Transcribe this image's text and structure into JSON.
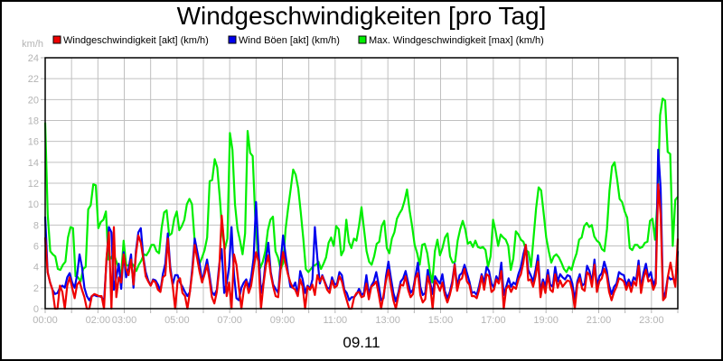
{
  "chart_data": {
    "type": "line",
    "title": "Windgeschwindigkeiten [pro Tag]",
    "xlabel": "09.11",
    "ylabel": "km/h",
    "ylim": [
      0,
      24
    ],
    "yticks": [
      0,
      2,
      4,
      6,
      8,
      10,
      12,
      14,
      16,
      18,
      20,
      22,
      24
    ],
    "xlim_hours": [
      0,
      24
    ],
    "xticks": [
      {
        "label": "00:00",
        "hour": 0
      },
      {
        "label": "02:00",
        "hour": 2
      },
      {
        "label": "03:00",
        "hour": 3
      },
      {
        "label": "05:00",
        "hour": 5
      },
      {
        "label": "07:00",
        "hour": 7
      },
      {
        "label": "09:00",
        "hour": 9
      },
      {
        "label": "11:00",
        "hour": 11
      },
      {
        "label": "13:00",
        "hour": 13
      },
      {
        "label": "15:00",
        "hour": 15
      },
      {
        "label": "17:00",
        "hour": 17
      },
      {
        "label": "19:00",
        "hour": 19
      },
      {
        "label": "21:00",
        "hour": 21
      },
      {
        "label": "23:00",
        "hour": 23
      }
    ],
    "grid": true,
    "legend_position": "top",
    "sample_interval_minutes": 10,
    "series": [
      {
        "name": "Max. Windgeschwindigkeit [max] (km/h)",
        "color": "#00ee00",
        "values": [
          17.8,
          9,
          5.5,
          5.2,
          5,
          3.8,
          3.7,
          4.2,
          4.5,
          6.8,
          7.8,
          7.7,
          3.1,
          3,
          2.6,
          3.8,
          4,
          9.5,
          9.9,
          11.9,
          11.8,
          7.7,
          8.3,
          8.5,
          9.3,
          4.7,
          4.8,
          5.3,
          4.6,
          3.9,
          3.2,
          6.5,
          4.2,
          4.1,
          4.4,
          4.1,
          3.6,
          4.2,
          4.6,
          5.2,
          5.1,
          5.5,
          6.1,
          6.1,
          5.5,
          5.3,
          7.7,
          9.2,
          9.4,
          7,
          7.2,
          8.6,
          9.3,
          7.5,
          7.9,
          8.5,
          10,
          10.5,
          10,
          6.7,
          5,
          4.3,
          4.9,
          5.6,
          6.8,
          12.2,
          12.3,
          14.3,
          13.5,
          10.6,
          7.3,
          5.7,
          6.7,
          16.8,
          15.2,
          10,
          7.6,
          6.5,
          5.2,
          7.2,
          17,
          14.9,
          14.6,
          8.8,
          5.5,
          3.9,
          4.5,
          5.5,
          7.5,
          8.5,
          8.8,
          5.5,
          4.9,
          3.8,
          4.3,
          7.6,
          9.6,
          11.4,
          13.3,
          12.8,
          11.5,
          9.2,
          6.7,
          3.8,
          3.5,
          3.8,
          4.1,
          4.2,
          4.5,
          3.8,
          4.3,
          4.9,
          6.3,
          6.8,
          6,
          7.9,
          7.6,
          5.1,
          5.6,
          8.5,
          6.4,
          5.8,
          6.7,
          6.5,
          7.9,
          9.7,
          7.6,
          5.5,
          4.5,
          4.2,
          5,
          6.2,
          6.4,
          7.9,
          8.4,
          5.8,
          5.3,
          6.7,
          7.3,
          8.6,
          9.1,
          9.5,
          10.3,
          11.4,
          9.4,
          7.9,
          6.1,
          5.3,
          4.2,
          6.1,
          6.2,
          5.3,
          3.6,
          2.5,
          5.5,
          6.6,
          5.1,
          5.8,
          6.8,
          7.2,
          5,
          4.4,
          4.5,
          6.5,
          7.6,
          8.4,
          7.6,
          6.2,
          6.4,
          5.9,
          6.5,
          5.9,
          5.8,
          5.9,
          5.6,
          4,
          5,
          8.5,
          7.4,
          6,
          7.1,
          6.8,
          6.6,
          6,
          3.7,
          4.8,
          7.4,
          7.1,
          6.6,
          6.4,
          5.6,
          5.4,
          4,
          6.8,
          9.6,
          11.6,
          11.3,
          9.1,
          6.8,
          5.5,
          4.4,
          5,
          5.2,
          4.9,
          4.4,
          3.8,
          3.5,
          4,
          3.7,
          4.6,
          5.3,
          6.6,
          6.8,
          7.9,
          8.2,
          7.8,
          8,
          6.9,
          6.5,
          6.3,
          5.7,
          5.5,
          7.6,
          11.3,
          13.6,
          14,
          12.4,
          10.5,
          10.2,
          9.3,
          8.7,
          5.8,
          5.6,
          6.1,
          6.1,
          5.8,
          5.9,
          6.3,
          6.4,
          8.4,
          8.6,
          6.6,
          10.5,
          18.5,
          20.1,
          19.9,
          15,
          14.8,
          6,
          10.4,
          10.7
        ]
      },
      {
        "name": "Wind Böen [akt] (km/h)",
        "color": "#0000ee",
        "values": [
          8.8,
          3.5,
          2.5,
          1.8,
          1.4,
          1.5,
          2,
          2.2,
          2,
          3,
          3.4,
          2.5,
          2,
          3.2,
          5.2,
          4,
          2,
          1.2,
          0.8,
          1.2,
          1.3,
          1.2,
          1.2,
          1.1,
          0.7,
          4.5,
          7.8,
          7.3,
          1.8,
          3,
          4.3,
          1.9,
          5.4,
          3,
          3.8,
          5.2,
          2,
          5.5,
          7.3,
          7.7,
          5,
          3.5,
          2.7,
          2.2,
          2.8,
          2.7,
          2.3,
          1.7,
          3.3,
          4.3,
          7.2,
          4,
          2.3,
          3.2,
          3.2,
          2.5,
          2.1,
          1.6,
          1.2,
          1.6,
          3.9,
          6.7,
          5.5,
          4.3,
          2.6,
          3.6,
          4.7,
          3.2,
          1.6,
          1.3,
          1.8,
          4.2,
          5.7,
          1.5,
          2.4,
          4,
          7.8,
          3.3,
          1,
          0.8,
          2,
          2.5,
          2.8,
          2,
          3,
          4.8,
          10.2,
          5.6,
          1.5,
          2.5,
          4.8,
          6.3,
          3.5,
          2.3,
          1.9,
          1.5,
          4.4,
          7,
          5.2,
          3.5,
          2.1,
          2,
          2.5,
          1.3,
          3.6,
          2.8,
          1.5,
          2.2,
          1.9,
          2.8,
          7.8,
          4.8,
          2.4,
          3.2,
          2.6,
          2,
          1.9,
          3,
          2.3,
          2.4,
          3.5,
          3.2,
          1.8,
          1.5,
          0.8,
          1.1,
          1.1,
          1.4,
          1.9,
          1.3,
          1.5,
          3.2,
          1.4,
          2.2,
          2.6,
          3.5,
          2.3,
          0.8,
          1,
          3.1,
          4.5,
          2.9,
          1.5,
          0.7,
          1.5,
          2.6,
          2.9,
          3.6,
          2.5,
          1.5,
          1.8,
          3.1,
          4.4,
          2.1,
          1.3,
          1.5,
          3.7,
          2.5,
          1.4,
          3.1,
          2.7,
          2.4,
          3.3,
          1.7,
          1,
          1.6,
          2.6,
          4.3,
          2.1,
          3.2,
          3.4,
          4.2,
          3.4,
          2.6,
          1.5,
          1.6,
          1.3,
          2.2,
          3.3,
          2.5,
          4,
          3.6,
          2.4,
          2,
          3.1,
          2.6,
          4.4,
          1.3,
          2.1,
          2.9,
          2.1,
          2.5,
          2.3,
          3.3,
          4,
          5.2,
          6.1,
          3.7,
          3.2,
          2.6,
          3.7,
          5.1,
          1.6,
          2.8,
          2.1,
          3.7,
          2.3,
          2.1,
          4,
          2.6,
          3.3,
          3,
          2.8,
          3.2,
          3.1,
          2.4,
          0.8,
          2.6,
          3.3,
          2.2,
          2.4,
          4.1,
          3.6,
          2.5,
          4.7,
          2.1,
          3.1,
          3.4,
          4.5,
          3.7,
          2.2,
          1.4,
          2.1,
          2.4,
          3.5,
          3.3,
          3.2,
          2.2,
          2.8,
          2.2,
          3,
          2.7,
          4.6,
          1.9,
          3.4,
          4.3,
          3,
          3.5,
          2.2,
          2.9,
          15.2,
          11.5,
          1,
          1.6,
          3.1,
          2.8,
          2.9,
          2.5,
          5.5
        ]
      },
      {
        "name": "Windgeschwindigkeit [akt] (km/h)",
        "color": "#ee0000",
        "values": [
          6.8,
          3.5,
          2.5,
          1.8,
          0,
          0,
          2.2,
          1.6,
          0,
          2.2,
          3,
          2,
          1,
          2.3,
          2.6,
          1.8,
          1.1,
          0,
          0,
          1.2,
          1.4,
          1.3,
          1.2,
          1.2,
          0,
          4.8,
          7.3,
          0,
          7.8,
          1.1,
          3,
          2.5,
          5.2,
          3.8,
          3.2,
          4.7,
          2.3,
          5.2,
          7,
          6.3,
          4.8,
          3.1,
          2.6,
          2.2,
          2.7,
          2.5,
          1.8,
          1.6,
          3,
          3.2,
          6.7,
          3.6,
          2.2,
          0,
          2.6,
          2.9,
          1.5,
          1.2,
          0,
          1.6,
          3.5,
          6.1,
          4.8,
          3.5,
          2.5,
          3.3,
          4.2,
          2.8,
          1.1,
          0.5,
          1.6,
          3.8,
          8.9,
          6.2,
          1.2,
          2.5,
          0,
          5.2,
          4.2,
          2.1,
          0,
          1.8,
          2.6,
          1.5,
          2.2,
          3.8,
          5.4,
          4.5,
          0,
          2.3,
          4.1,
          5.1,
          3.3,
          2.1,
          1.2,
          1.1,
          3.7,
          5.4,
          4.3,
          3.3,
          2.5,
          2,
          1.8,
          1.2,
          2.8,
          2.1,
          0,
          2.1,
          1.8,
          2.3,
          1.3,
          3.2,
          2.6,
          3.1,
          2.5,
          1.8,
          1.5,
          2.7,
          2,
          2.2,
          3.1,
          2.6,
          1.6,
          0.8,
          0,
          0,
          1.1,
          1.5,
          1.6,
          1.1,
          1.2,
          2.4,
          0.9,
          2.1,
          2.3,
          2.6,
          1.4,
          0,
          1.3,
          2.7,
          3.7,
          2.1,
          0.8,
          0,
          1.2,
          2.3,
          2.2,
          3.1,
          1.8,
          1.1,
          1.4,
          2.9,
          3.4,
          1.3,
          0.6,
          0.9,
          3.1,
          2.2,
          0,
          2.7,
          2.3,
          1.7,
          2.5,
          1.3,
          0.6,
          1.3,
          2.3,
          4.2,
          1.7,
          2.7,
          2.9,
          3.8,
          2.6,
          2.3,
          1.2,
          1.2,
          1,
          1.8,
          3.1,
          1.8,
          3.3,
          3.1,
          1.6,
          1.8,
          2.8,
          2.4,
          3.6,
          0,
          1.9,
          2.2,
          1.6,
          2.1,
          1.9,
          2.8,
          3.3,
          4.4,
          6.1,
          2.7,
          2.8,
          2.1,
          3.1,
          4.5,
          1.1,
          2.5,
          1.5,
          3.2,
          1.8,
          1.6,
          3.3,
          2,
          2.7,
          2.1,
          2.4,
          2.7,
          2.6,
          1.7,
          0,
          2.3,
          2.9,
          1.9,
          1.7,
          3.5,
          3.2,
          2.1,
          4.2,
          1.6,
          2.6,
          2.9,
          3.8,
          3.2,
          1.6,
          0.8,
          1.6,
          2.1,
          2.9,
          2.8,
          2.6,
          1.8,
          2.5,
          1.6,
          2.6,
          2.2,
          4.1,
          1.5,
          2.9,
          3.7,
          2.6,
          2.8,
          1.8,
          2.4,
          11.9,
          9,
          0.8,
          1.1,
          3.1,
          4.4,
          3.1,
          2.1,
          6.7
        ]
      }
    ]
  },
  "header": {
    "title": "Windgeschwindigkeiten [pro Tag]"
  },
  "legend": {
    "items": [
      {
        "label": "Windgeschwindigkeit [akt] (km/h)",
        "color": "#ee0000"
      },
      {
        "label": "Wind Böen [akt] (km/h)",
        "color": "#0000ee"
      },
      {
        "label": "Max. Windgeschwindigkeit [max] (km/h)",
        "color": "#00ee00"
      }
    ]
  },
  "axis": {
    "y_unit": "km/h",
    "x_date_label": "09.11"
  }
}
